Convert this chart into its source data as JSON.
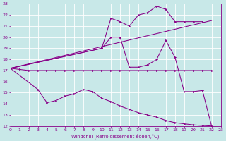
{
  "xlabel": "Windchill (Refroidissement éolien,°C)",
  "xlim": [
    0,
    23
  ],
  "ylim": [
    12,
    23
  ],
  "xticks": [
    0,
    1,
    2,
    3,
    4,
    5,
    6,
    7,
    8,
    9,
    10,
    11,
    12,
    13,
    14,
    15,
    16,
    17,
    18,
    19,
    20,
    21,
    22,
    23
  ],
  "yticks": [
    12,
    13,
    14,
    15,
    16,
    17,
    18,
    19,
    20,
    21,
    22,
    23
  ],
  "bg_color": "#c8e8e8",
  "line_color": "#880088",
  "grid_color": "#ffffff",
  "line1_x": [
    0,
    1,
    2,
    3,
    4,
    5,
    6,
    7,
    8,
    9,
    10,
    11,
    12,
    13,
    14,
    15,
    16,
    17,
    18,
    19,
    20,
    21,
    22
  ],
  "line1_y": [
    17.2,
    17.1,
    17.0,
    17.0,
    17.0,
    17.0,
    17.0,
    17.0,
    17.0,
    17.0,
    17.0,
    17.0,
    17.0,
    17.0,
    17.0,
    17.0,
    17.0,
    17.0,
    17.0,
    17.0,
    17.0,
    17.0,
    17.0
  ],
  "line2_x": [
    0,
    3,
    4,
    5,
    6,
    7,
    8,
    9,
    10,
    11,
    12,
    13,
    14,
    15,
    16,
    17,
    18,
    19,
    20,
    21,
    22
  ],
  "line2_y": [
    17.2,
    15.3,
    14.1,
    14.3,
    14.7,
    14.9,
    15.3,
    15.1,
    14.5,
    14.2,
    13.8,
    13.5,
    13.2,
    13.0,
    12.8,
    12.5,
    12.3,
    12.2,
    12.1,
    12.05,
    12.0
  ],
  "line3_x": [
    0,
    10,
    11,
    12,
    13,
    14,
    15,
    16,
    17,
    18,
    19,
    20,
    21,
    22
  ],
  "line3_y": [
    17.2,
    19.0,
    20.0,
    20.0,
    17.3,
    17.3,
    17.5,
    18.0,
    19.7,
    18.2,
    15.1,
    15.1,
    15.2,
    12.0
  ],
  "line4_x": [
    0,
    10,
    11,
    12,
    13,
    14,
    15,
    16,
    17,
    18,
    19,
    20,
    21
  ],
  "line4_y": [
    17.2,
    19.0,
    21.7,
    21.4,
    21.0,
    22.0,
    22.2,
    22.8,
    22.5,
    21.4,
    21.4,
    21.4,
    21.4
  ]
}
